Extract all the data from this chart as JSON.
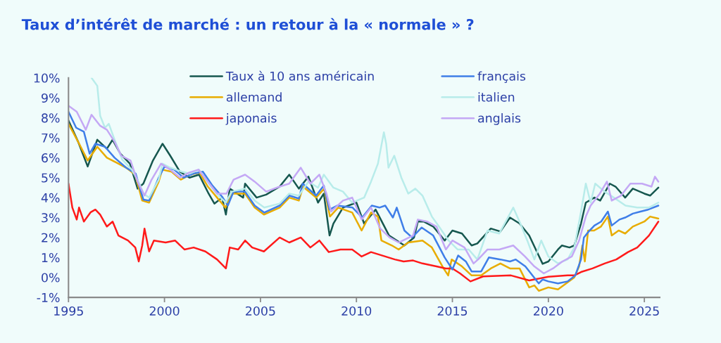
{
  "chart_data": {
    "type": "line",
    "title": "Taux d’intérêt de marché : un retour à la « normale » ?",
    "xlim": [
      1995,
      2025.8
    ],
    "ylim": [
      -1,
      10
    ],
    "xticks": [
      1995,
      2000,
      2005,
      2010,
      2015,
      2020,
      2025
    ],
    "yticks": [
      {
        "value": -1,
        "label": "-1%"
      },
      {
        "value": 0,
        "label": "0%"
      },
      {
        "value": 1,
        "label": "1%"
      },
      {
        "value": 2,
        "label": "2%"
      },
      {
        "value": 3,
        "label": "3%"
      },
      {
        "value": 4,
        "label": "4%"
      },
      {
        "value": 5,
        "label": "5%"
      },
      {
        "value": 6,
        "label": "6%"
      },
      {
        "value": 7,
        "label": "7%"
      },
      {
        "value": 8,
        "label": "8%"
      },
      {
        "value": 9,
        "label": "9%"
      },
      {
        "value": 10,
        "label": "10%"
      }
    ],
    "grid": false,
    "legend": "top",
    "marker": "none",
    "line_style": "solid",
    "series": [
      {
        "name": "Taux à 10 ans américain",
        "color": "#16574f",
        "x": [
          1995.0,
          1995.5,
          1996.0,
          1996.5,
          1997.0,
          1997.3,
          1997.7,
          1998.2,
          1998.6,
          1998.9,
          1999.4,
          1999.9,
          2000.3,
          2000.8,
          2001.3,
          2001.8,
          2002.3,
          2002.6,
          2003.0,
          2003.2,
          2003.4,
          2004.1,
          2004.2,
          2004.8,
          2005.3,
          2006.0,
          2006.5,
          2007.0,
          2007.5,
          2008.0,
          2008.3,
          2008.6,
          2008.8,
          2009.3,
          2010.0,
          2010.4,
          2011.0,
          2011.7,
          2012.5,
          2013.0,
          2013.2,
          2013.5,
          2014.0,
          2014.6,
          2015.0,
          2015.5,
          2016.0,
          2016.3,
          2017.0,
          2017.5,
          2018.0,
          2018.5,
          2019.0,
          2019.7,
          2020.0,
          2020.5,
          2020.7,
          2021.1,
          2021.35,
          2021.7,
          2021.95,
          2022.4,
          2022.7,
          2023.2,
          2023.5,
          2024.0,
          2024.4,
          2025.0,
          2025.3,
          2025.73
        ],
        "values": [
          7.86,
          6.8,
          5.56,
          6.9,
          6.45,
          6.9,
          6.2,
          5.7,
          4.45,
          4.7,
          5.86,
          6.7,
          6.1,
          5.3,
          5.0,
          5.15,
          4.2,
          3.7,
          4.0,
          3.15,
          4.45,
          4.0,
          4.7,
          4.0,
          4.15,
          4.55,
          5.15,
          4.45,
          5.05,
          3.75,
          4.2,
          2.1,
          2.7,
          3.5,
          3.75,
          2.7,
          3.4,
          2.1,
          1.6,
          2.0,
          2.8,
          2.8,
          2.55,
          1.85,
          2.35,
          2.2,
          1.6,
          1.7,
          2.45,
          2.3,
          3.0,
          2.7,
          2.1,
          0.68,
          0.8,
          1.4,
          1.6,
          1.5,
          1.6,
          2.7,
          3.75,
          4.0,
          3.85,
          4.7,
          4.55,
          4.0,
          4.45,
          4.2,
          4.1,
          4.5
        ]
      },
      {
        "name": "allemand",
        "color": "#e8ac00",
        "x": [
          1995.0,
          1995.5,
          1996.0,
          1996.5,
          1997.0,
          1997.5,
          1998.0,
          1998.48,
          1998.84,
          1999.2,
          1999.7,
          1999.88,
          2000.37,
          2000.85,
          2001.34,
          2001.83,
          2002.26,
          2002.74,
          2003.17,
          2003.54,
          2004.2,
          2004.7,
          2005.18,
          2006.0,
          2006.5,
          2007.0,
          2007.22,
          2007.9,
          2008.32,
          2008.62,
          2009.05,
          2009.78,
          2010.27,
          2010.76,
          2011.12,
          2011.3,
          2011.85,
          2012.2,
          2012.7,
          2013.44,
          2013.93,
          2014.54,
          2014.78,
          2014.96,
          2015.5,
          2016.0,
          2016.5,
          2017.0,
          2017.5,
          2018.0,
          2018.5,
          2019.0,
          2019.27,
          2019.5,
          2020.0,
          2020.5,
          2021.0,
          2021.35,
          2021.6,
          2021.77,
          2021.9,
          2022.07,
          2022.38,
          2022.74,
          2023.1,
          2023.3,
          2023.66,
          2024.0,
          2024.4,
          2025.0,
          2025.3,
          2025.73
        ],
        "values": [
          7.7,
          6.8,
          5.86,
          6.55,
          6.0,
          5.75,
          5.5,
          5.15,
          3.85,
          3.75,
          4.8,
          5.4,
          5.3,
          4.9,
          5.15,
          5.25,
          4.55,
          4.0,
          3.5,
          4.2,
          4.2,
          3.5,
          3.15,
          3.5,
          4.0,
          3.85,
          4.55,
          4.0,
          4.45,
          3.05,
          3.5,
          3.25,
          2.35,
          3.25,
          3.05,
          1.85,
          1.6,
          1.4,
          1.75,
          1.85,
          1.5,
          0.45,
          0.1,
          0.9,
          0.55,
          0.1,
          0.1,
          0.45,
          0.7,
          0.45,
          0.45,
          -0.5,
          -0.4,
          -0.67,
          -0.5,
          -0.6,
          -0.25,
          0.0,
          0.55,
          1.6,
          0.8,
          2.35,
          2.35,
          2.55,
          3.05,
          2.1,
          2.35,
          2.2,
          2.55,
          2.8,
          3.05,
          2.95
        ]
      },
      {
        "name": "japonais",
        "color": "#ff1a1a",
        "x": [
          1995.0,
          1995.2,
          1995.43,
          1995.55,
          1995.8,
          1996.16,
          1996.4,
          1996.65,
          1997.0,
          1997.3,
          1997.6,
          1998.1,
          1998.48,
          1998.66,
          1998.84,
          1998.96,
          1999.2,
          1999.45,
          2000.06,
          2000.55,
          2001.04,
          2001.52,
          2002.13,
          2002.74,
          2003.2,
          2003.4,
          2003.84,
          2004.2,
          2004.57,
          2005.18,
          2006.0,
          2006.5,
          2007.1,
          2007.6,
          2008.07,
          2008.56,
          2009.17,
          2009.78,
          2010.27,
          2010.76,
          2011.5,
          2012.0,
          2012.46,
          2012.95,
          2013.44,
          2014.17,
          2014.66,
          2015.0,
          2015.4,
          2015.94,
          2016.6,
          2018.05,
          2019.0,
          2020.0,
          2021.0,
          2021.35,
          2021.7,
          2022.3,
          2022.93,
          2023.54,
          2024.15,
          2024.63,
          2025.24,
          2025.73
        ],
        "values": [
          4.7,
          3.5,
          2.9,
          3.5,
          2.8,
          3.27,
          3.4,
          3.15,
          2.55,
          2.8,
          2.1,
          1.85,
          1.5,
          0.8,
          1.6,
          2.45,
          1.3,
          1.85,
          1.75,
          1.85,
          1.4,
          1.5,
          1.3,
          0.9,
          0.45,
          1.5,
          1.4,
          1.85,
          1.5,
          1.3,
          2.0,
          1.75,
          2.0,
          1.5,
          1.85,
          1.27,
          1.4,
          1.4,
          1.05,
          1.27,
          1.05,
          0.9,
          0.8,
          0.85,
          0.7,
          0.55,
          0.45,
          0.45,
          0.2,
          -0.2,
          0.05,
          0.1,
          -0.15,
          0.03,
          0.1,
          0.1,
          0.27,
          0.45,
          0.7,
          0.9,
          1.27,
          1.5,
          2.1,
          2.8
        ]
      },
      {
        "name": "français",
        "color": "#3f7ee8",
        "x": [
          1995.0,
          1995.4,
          1995.8,
          1996.1,
          1996.4,
          1996.9,
          1997.4,
          1998.0,
          1998.5,
          1998.9,
          1999.2,
          1999.7,
          2000.0,
          2000.5,
          2001.0,
          2001.5,
          2002.0,
          2002.5,
          2003.0,
          2003.3,
          2003.6,
          2004.2,
          2004.7,
          2005.2,
          2006.0,
          2006.5,
          2007.0,
          2007.2,
          2007.9,
          2008.3,
          2008.6,
          2009.0,
          2009.8,
          2010.3,
          2010.8,
          2011.2,
          2011.5,
          2011.9,
          2012.1,
          2012.5,
          2012.9,
          2013.4,
          2014.0,
          2014.6,
          2015.0,
          2015.3,
          2015.7,
          2016.0,
          2016.5,
          2016.9,
          2017.5,
          2018.0,
          2018.3,
          2018.8,
          2019.5,
          2019.7,
          2020.0,
          2020.5,
          2021.0,
          2021.4,
          2021.7,
          2021.85,
          2022.1,
          2022.4,
          2022.75,
          2023.1,
          2023.3,
          2023.7,
          2024.0,
          2024.4,
          2024.8,
          2025.2,
          2025.73
        ],
        "values": [
          8.3,
          7.5,
          7.3,
          6.2,
          6.7,
          6.55,
          6.0,
          5.5,
          5.2,
          3.9,
          3.85,
          5.0,
          5.55,
          5.4,
          5.0,
          5.2,
          5.3,
          4.6,
          4.05,
          3.6,
          4.3,
          4.3,
          3.6,
          3.25,
          3.6,
          4.1,
          3.95,
          4.7,
          4.1,
          4.6,
          3.4,
          3.6,
          3.5,
          3.0,
          3.6,
          3.5,
          3.6,
          3.0,
          3.5,
          2.35,
          2.0,
          2.5,
          2.1,
          1.0,
          0.4,
          1.1,
          0.8,
          0.3,
          0.3,
          1.0,
          0.9,
          0.8,
          0.9,
          0.55,
          -0.3,
          -0.1,
          -0.2,
          -0.3,
          -0.2,
          0.1,
          0.9,
          2.0,
          2.3,
          2.6,
          2.8,
          3.3,
          2.6,
          2.9,
          3.0,
          3.2,
          3.3,
          3.4,
          3.6
        ]
      },
      {
        "name": "italien",
        "color": "#b8ecea",
        "x": [
          1996.2,
          1996.5,
          1996.65,
          1996.9,
          1997.1,
          1997.4,
          1997.8,
          1998.3,
          1998.7,
          1998.9,
          1999.2,
          1999.7,
          1999.9,
          2000.3,
          2000.9,
          2001.3,
          2001.8,
          2002.3,
          2002.8,
          2003.2,
          2003.5,
          2004.2,
          2004.7,
          2005.2,
          2006.0,
          2006.5,
          2007.0,
          2007.5,
          2008.0,
          2008.3,
          2008.8,
          2009.3,
          2009.78,
          2010.4,
          2010.76,
          2011.12,
          2011.43,
          2011.55,
          2011.67,
          2011.97,
          2012.34,
          2012.7,
          2013.07,
          2013.44,
          2013.93,
          2014.3,
          2014.8,
          2015.27,
          2015.85,
          2016.3,
          2016.83,
          2017.44,
          2018.17,
          2018.54,
          2018.9,
          2019.27,
          2019.63,
          2020.0,
          2020.5,
          2021.0,
          2021.35,
          2021.7,
          2021.95,
          2022.2,
          2022.44,
          2022.93,
          2023.41,
          2024.02,
          2024.63,
          2025.24,
          2025.73
        ],
        "values": [
          10.0,
          9.6,
          8.1,
          7.5,
          7.7,
          6.9,
          5.9,
          5.4,
          4.7,
          4.2,
          4.0,
          4.9,
          5.7,
          5.5,
          5.3,
          5.2,
          5.4,
          4.7,
          4.1,
          3.75,
          4.3,
          4.45,
          3.85,
          3.5,
          3.7,
          4.2,
          4.1,
          4.8,
          4.5,
          5.15,
          4.5,
          4.3,
          3.75,
          4.0,
          4.8,
          5.7,
          7.27,
          6.7,
          5.5,
          6.1,
          5.0,
          4.2,
          4.45,
          4.1,
          3.05,
          2.55,
          1.85,
          1.4,
          1.4,
          0.9,
          2.35,
          2.2,
          3.5,
          2.7,
          1.85,
          0.9,
          1.85,
          1.05,
          0.7,
          0.9,
          1.5,
          3.3,
          4.7,
          3.75,
          4.7,
          4.3,
          4.0,
          3.6,
          3.5,
          3.5,
          3.75
        ]
      },
      {
        "name": "anglais",
        "color": "#c4a8f5",
        "x": [
          1995.0,
          1995.43,
          1995.9,
          1996.2,
          1996.65,
          1997.0,
          1997.4,
          1997.75,
          1998.23,
          1998.6,
          1998.96,
          1999.33,
          1999.82,
          2000.3,
          2000.8,
          2001.28,
          2001.77,
          2002.26,
          2002.74,
          2003.23,
          2003.6,
          2004.2,
          2004.7,
          2005.3,
          2006.0,
          2006.5,
          2007.1,
          2007.6,
          2008.07,
          2008.44,
          2008.68,
          2009.3,
          2009.78,
          2010.27,
          2010.76,
          2011.24,
          2011.73,
          2012.2,
          2012.95,
          2013.2,
          2013.68,
          2014.17,
          2014.66,
          2015.0,
          2015.63,
          2016.1,
          2016.34,
          2016.83,
          2017.44,
          2018.17,
          2018.78,
          2019.27,
          2019.76,
          2020.24,
          2020.73,
          2021.22,
          2021.6,
          2021.95,
          2022.2,
          2022.68,
          2023.05,
          2023.3,
          2023.78,
          2024.27,
          2024.88,
          2025.37,
          2025.55,
          2025.73
        ],
        "values": [
          8.6,
          8.3,
          7.4,
          8.15,
          7.6,
          7.4,
          6.8,
          6.1,
          5.86,
          4.8,
          4.1,
          4.9,
          5.7,
          5.4,
          5.0,
          5.25,
          5.4,
          4.8,
          4.2,
          4.2,
          4.9,
          5.15,
          4.8,
          4.3,
          4.55,
          4.7,
          5.5,
          4.7,
          5.15,
          4.2,
          3.3,
          3.85,
          4.0,
          2.9,
          3.5,
          2.45,
          2.0,
          1.75,
          2.1,
          2.9,
          2.8,
          2.55,
          1.4,
          1.85,
          1.5,
          0.7,
          0.9,
          1.4,
          1.4,
          1.6,
          1.05,
          0.55,
          0.2,
          0.45,
          0.8,
          1.05,
          1.85,
          3.05,
          3.6,
          4.2,
          4.8,
          3.85,
          4.1,
          4.7,
          4.7,
          4.55,
          5.05,
          4.8
        ]
      }
    ]
  }
}
